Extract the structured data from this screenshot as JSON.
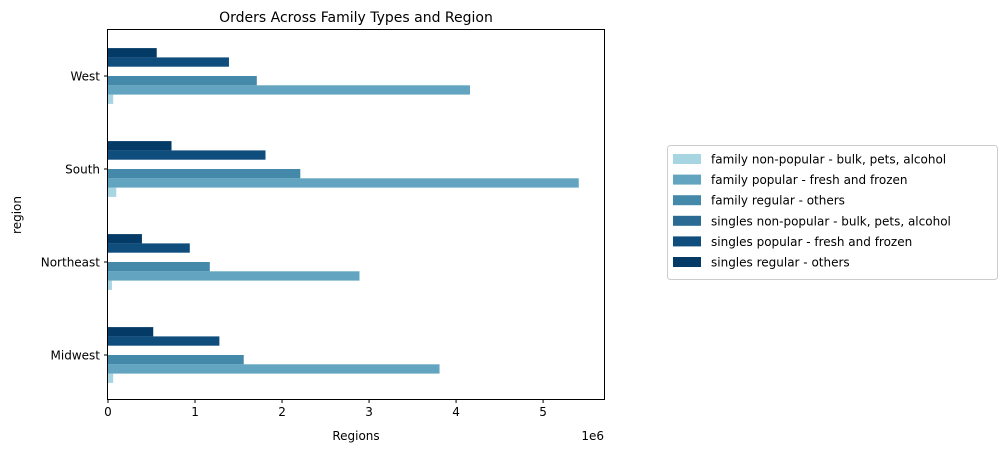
{
  "chart_data": {
    "type": "bar",
    "orientation": "horizontal",
    "title": "Orders Across Family Types and Region",
    "xlabel": "Regions",
    "ylabel": "region",
    "x_offset_text": "1e6",
    "x_scale_factor": 1000000,
    "xlim": [
      0,
      5700000
    ],
    "x_ticks": [
      0,
      1000000,
      2000000,
      3000000,
      4000000,
      5000000
    ],
    "x_tick_labels": [
      "0",
      "1",
      "2",
      "3",
      "4",
      "5"
    ],
    "categories": [
      "Midwest",
      "Northeast",
      "South",
      "West"
    ],
    "grid": false,
    "legend_position": "right, outside plot",
    "series": [
      {
        "name": "family non-popular - bulk, pets, alcohol",
        "color": "#a8d5e2",
        "values": [
          60000,
          45000,
          95000,
          60000
        ]
      },
      {
        "name": "family popular - fresh and frozen",
        "color": "#63a5c0",
        "values": [
          3810000,
          2890000,
          5410000,
          4160000
        ]
      },
      {
        "name": "family regular - others",
        "color": "#4589aa",
        "values": [
          1560000,
          1170000,
          2210000,
          1710000
        ]
      },
      {
        "name": "singles non-popular - bulk, pets, alcohol",
        "color": "#2b6b93",
        "values": [
          0,
          0,
          0,
          0
        ]
      },
      {
        "name": "singles popular - fresh and frozen",
        "color": "#0f4d7c",
        "values": [
          1280000,
          940000,
          1810000,
          1390000
        ]
      },
      {
        "name": "singles regular - others",
        "color": "#033a66",
        "values": [
          520000,
          390000,
          730000,
          560000
        ]
      }
    ]
  }
}
